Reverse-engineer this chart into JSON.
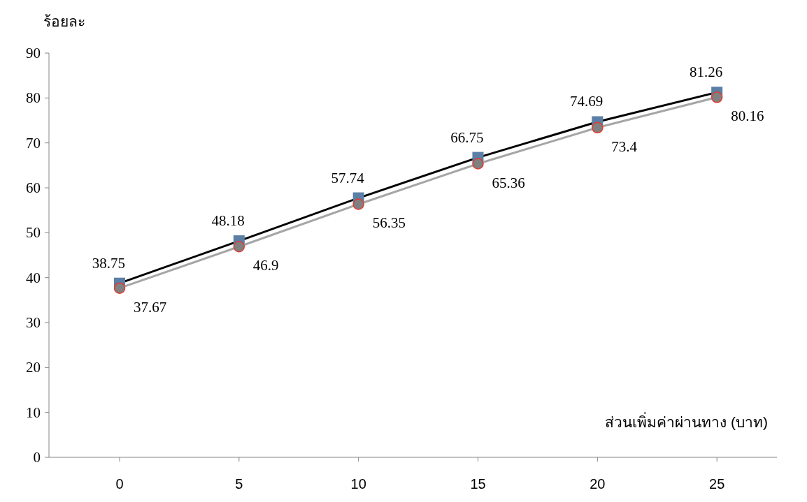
{
  "chart_data": {
    "type": "line",
    "ylabel": "ร้อยละ",
    "xlabel": "ส่วนเพิ่มค่าผ่านทาง (บาท)",
    "categories": [
      "0",
      "5",
      "10",
      "15",
      "20",
      "25"
    ],
    "ylim": [
      0,
      90
    ],
    "yticks": [
      0,
      10,
      20,
      30,
      40,
      50,
      60,
      70,
      80,
      90
    ],
    "data_labels": true,
    "series": [
      {
        "color": "#000000",
        "colors": [
          "#5b7fa6",
          "#5b7fa6",
          "#5b7fa6",
          "#5b7fa6",
          "#5b7fa6",
          "#5b7fa6"
        ],
        "marker": "square",
        "values": [
          38.75,
          48.18,
          57.74,
          66.75,
          74.69,
          81.26
        ]
      },
      {
        "color": "#a6a6a6",
        "colors": [
          "#808080",
          "#808080",
          "#808080",
          "#808080",
          "#808080",
          "#808080"
        ],
        "marker": "circle",
        "values": [
          37.67,
          46.9,
          56.35,
          65.36,
          73.4,
          80.16
        ]
      }
    ]
  }
}
